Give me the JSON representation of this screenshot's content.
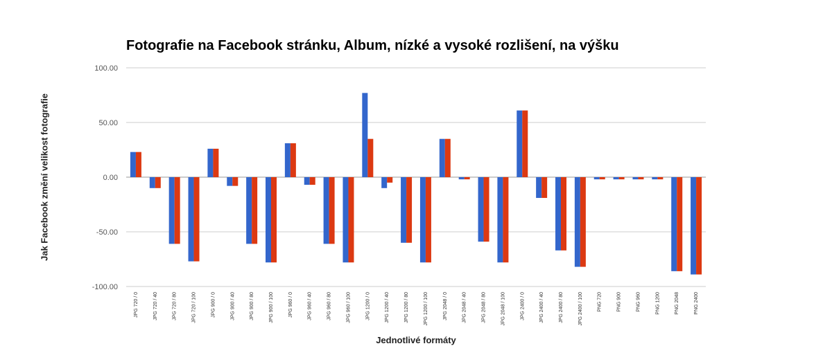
{
  "chart_data": {
    "type": "bar",
    "title": "Fotografie na Facebook stránku, Album, nízké a vysoké rozlišení, na výšku",
    "xlabel": "Jednotlivé formáty",
    "ylabel": "Jak Facebook změní velikost fotografie",
    "ylim": [
      -100,
      100
    ],
    "yticks": [
      "100.00",
      "50.00",
      "0.00",
      "-50.00",
      "-100.00"
    ],
    "ytick_values": [
      100,
      50,
      0,
      -50,
      -100
    ],
    "grid": true,
    "legend": "none",
    "categories": [
      "JPG 720 / 0",
      "JPG 720 / 40",
      "JPG 720 / 80",
      "JPG 720 / 100",
      "JPG 900 / 0",
      "JPG 900 / 40",
      "JPG 900 / 80",
      "JPG 900 / 100",
      "JPG 960 / 0",
      "JPG 960 / 40",
      "JPG 960 / 80",
      "JPG 960 / 100",
      "JPG 1200 / 0",
      "JPG 1200 / 40",
      "JPG 1200 / 80",
      "JPG 1200 / 100",
      "JPG 2048 / 0",
      "JPG 2048 / 40",
      "JPG 2048 / 80",
      "JPG 2048 / 100",
      "JPG 2400 / 0",
      "JPG 2400 / 40",
      "JPG 2400 / 80",
      "JPG 2400 / 100",
      "PNG 720",
      "PNG 900",
      "PNG 960",
      "PNG 1200",
      "PNG 2048",
      "PNG 2400"
    ],
    "series": [
      {
        "color": "#3366cc",
        "values": [
          23,
          -10,
          -61,
          -77,
          26,
          -8,
          -61,
          -78,
          31,
          -7,
          -61,
          -78,
          77,
          -10,
          -60,
          -78,
          35,
          -2,
          -59,
          -78,
          61,
          -19,
          -67,
          -82,
          -2,
          -2,
          -2,
          -2,
          -86,
          -89
        ]
      },
      {
        "color": "#dc3912",
        "values": [
          23,
          -10,
          -61,
          -77,
          26,
          -8,
          -61,
          -78,
          31,
          -7,
          -61,
          -78,
          35,
          -5,
          -60,
          -78,
          35,
          -2,
          -59,
          -78,
          61,
          -19,
          -67,
          -82,
          -2,
          -2,
          -2,
          -2,
          -86,
          -89
        ]
      }
    ]
  }
}
